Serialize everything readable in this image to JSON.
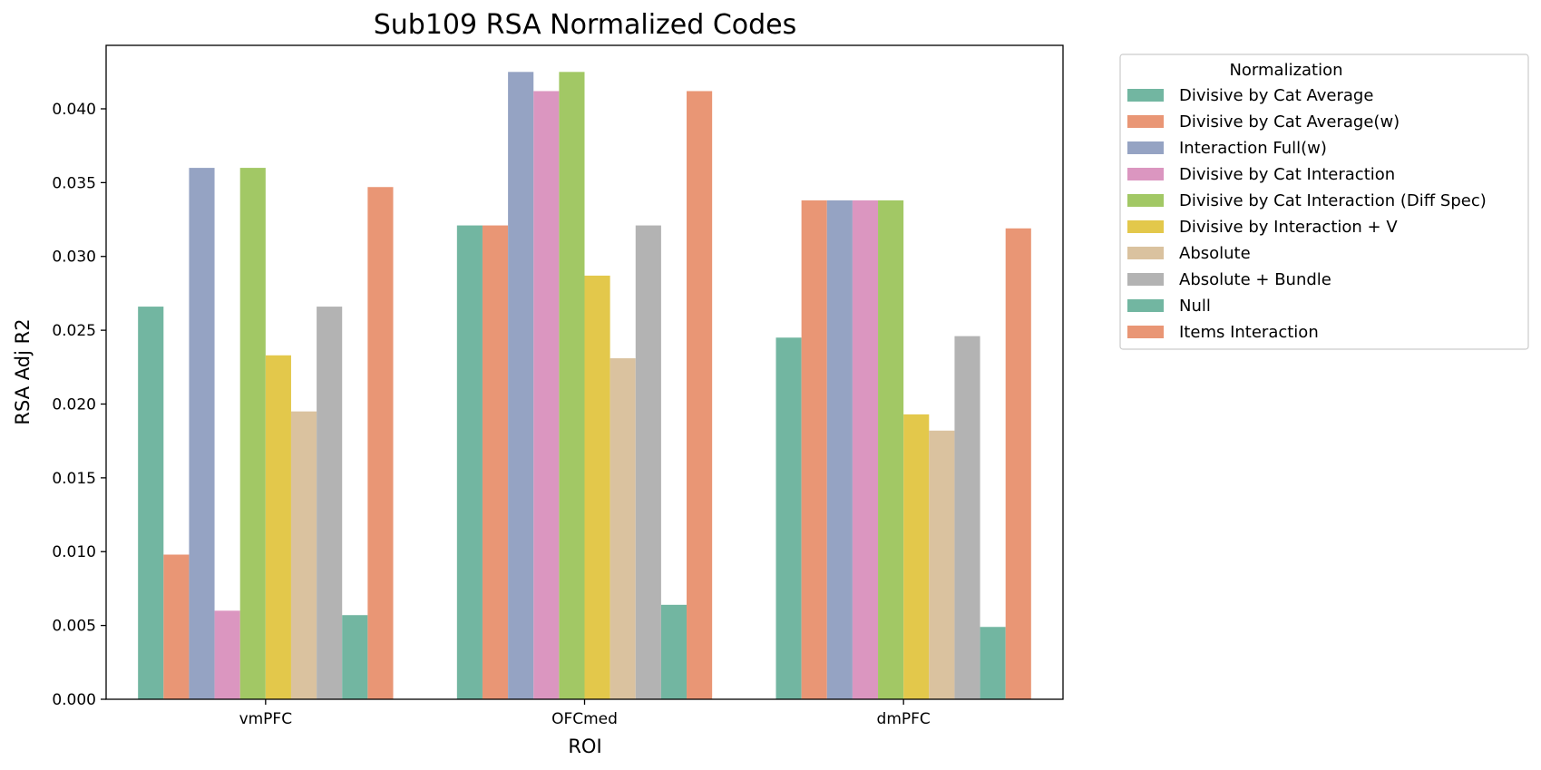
{
  "chart_data": {
    "type": "bar",
    "title": "Sub109 RSA Normalized Codes",
    "xlabel": "ROI",
    "ylabel": "RSA Adj R2",
    "categories": [
      "vmPFC",
      "OFCmed",
      "dmPFC"
    ],
    "ylim": [
      0,
      0.0443
    ],
    "yticks": [
      "0.000",
      "0.005",
      "0.010",
      "0.015",
      "0.020",
      "0.025",
      "0.030",
      "0.035",
      "0.040"
    ],
    "grid": false,
    "legend": {
      "title": "Normalization",
      "placement": "outside-right"
    },
    "series": [
      {
        "name": "Divisive by Cat Average",
        "color": "#72b6a1",
        "values": [
          0.0266,
          0.0321,
          0.0245
        ]
      },
      {
        "name": "Divisive by Cat Average(w)",
        "color": "#e99675",
        "values": [
          0.0098,
          0.0321,
          0.0338
        ]
      },
      {
        "name": "Interaction Full(w)",
        "color": "#95a3c3",
        "values": [
          0.036,
          0.0425,
          0.0338
        ]
      },
      {
        "name": "Divisive by Cat Interaction",
        "color": "#db96c0",
        "values": [
          0.006,
          0.0412,
          0.0338
        ]
      },
      {
        "name": "Divisive by Cat Interaction (Diff Spec)",
        "color": "#a2c865",
        "values": [
          0.036,
          0.0425,
          0.0338
        ]
      },
      {
        "name": "Divisive by Interaction + V",
        "color": "#e3c84b",
        "values": [
          0.0233,
          0.0287,
          0.0193
        ]
      },
      {
        "name": "Absolute",
        "color": "#dac29f",
        "values": [
          0.0195,
          0.0231,
          0.0182
        ]
      },
      {
        "name": "Absolute + Bundle",
        "color": "#b3b3b3",
        "values": [
          0.0266,
          0.0321,
          0.0246
        ]
      },
      {
        "name": "Null",
        "color": "#72b6a1",
        "values": [
          0.0057,
          0.0064,
          0.0049
        ]
      },
      {
        "name": "Items Interaction",
        "color": "#e99675",
        "values": [
          0.0347,
          0.0412,
          0.0319
        ]
      }
    ]
  }
}
